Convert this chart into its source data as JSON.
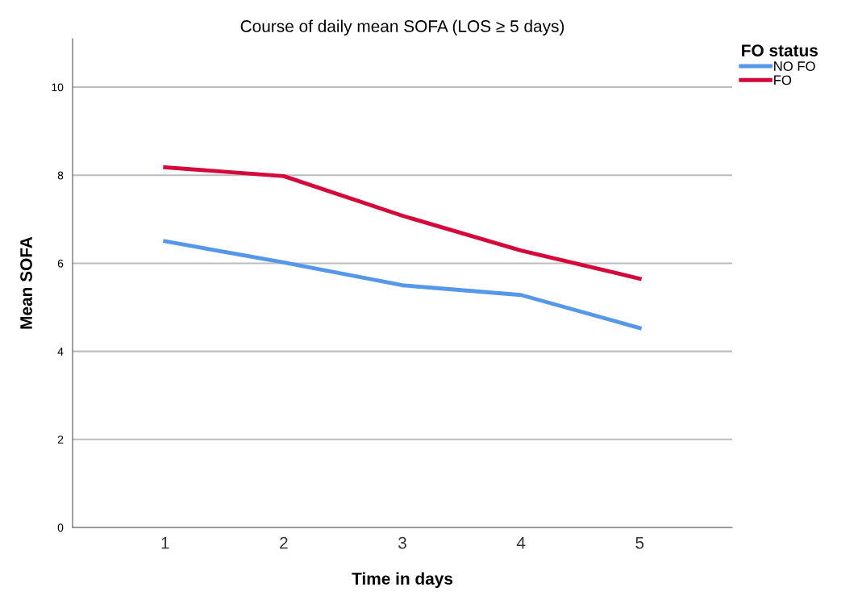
{
  "chart_data": {
    "type": "line",
    "title": "Course of daily mean SOFA (LOS ≥ 5 days)",
    "xlabel": "Time in days",
    "ylabel": "Mean SOFA",
    "legend_title": "FO status",
    "x": [
      1,
      2,
      3,
      4,
      5
    ],
    "series": [
      {
        "name": "NO FO",
        "color": "#5597e8",
        "values": [
          6.5,
          6.02,
          5.5,
          5.28,
          4.53
        ]
      },
      {
        "name": "FO",
        "color": "#d6083b",
        "values": [
          8.18,
          7.98,
          7.08,
          6.29,
          5.65
        ]
      }
    ],
    "xlim": [
      0.22,
      5.78
    ],
    "xticks": [
      1,
      2,
      3,
      4,
      5
    ],
    "ylim": [
      0,
      11.1
    ],
    "yticks": [
      0,
      2,
      4,
      6,
      8,
      10
    ],
    "grid": "y",
    "legend": "top right",
    "marker": "none",
    "line_style": "solid"
  }
}
